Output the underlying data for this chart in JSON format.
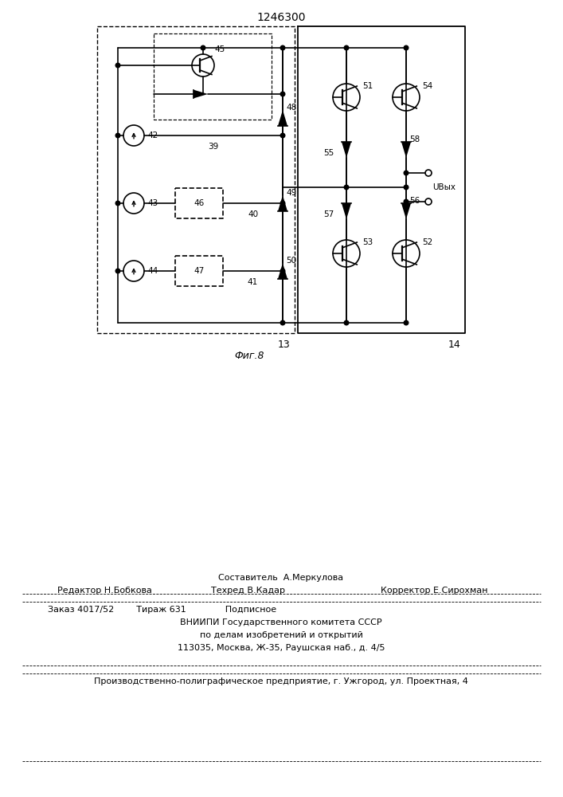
{
  "title": "1246300",
  "fig_caption": "Фиг.8",
  "bg_color": "#ffffff",
  "line_color": "#000000",
  "page_width": 7.07,
  "page_height": 10.0,
  "bottom_text": {
    "line1_center": "Составитель  А.Меркулова",
    "line2_left": "Редактор Н.Бобкова",
    "line2_center": "Техред В.Кадар",
    "line2_right": "Корректор Е.Сирохман",
    "line3": "Заказ 4017/52        Тираж 631              Подписное",
    "line4": "ВНИИПИ Государственного комитета СССР",
    "line5": "по делам изобретений и открытий",
    "line6": "113035, Москва, Ж-35, Раушская наб., д. 4/5",
    "line7": "Производственно-полиграфическое предприятие, г. Ужгород, ул. Проектная, 4"
  }
}
